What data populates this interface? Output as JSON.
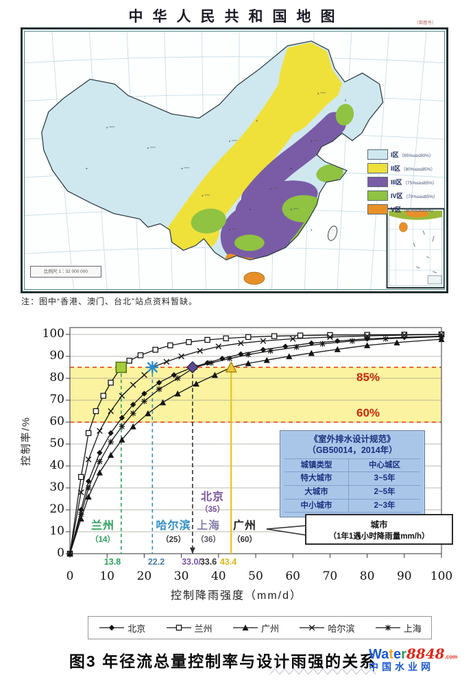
{
  "map": {
    "title": "中华人民共和国地图",
    "corner_note": "（审图号）",
    "scale_note": "比例尺 1∶32 000 000",
    "note": "注：图中“香港、澳门、台北”站点资料暂缺。",
    "legend": [
      {
        "label": "I区",
        "range": "（85%≤α≤90%）",
        "color": "#cfe8f0"
      },
      {
        "label": "II区",
        "range": "（80%≤α≤85%）",
        "color": "#efe13a"
      },
      {
        "label": "III区",
        "range": "（75%≤α≤85%）",
        "color": "#7a5ca6"
      },
      {
        "label": "IV区",
        "range": "（70%≤α≤85%）",
        "color": "#8fc341"
      },
      {
        "label": "V区",
        "range": "（60%≤α≤85%）",
        "color": "#e89028"
      }
    ]
  },
  "chart_data": {
    "type": "line",
    "xlabel": "控制降雨强度（mm/d）",
    "ylabel": "控制率/%",
    "xlim": [
      0,
      100
    ],
    "ylim": [
      0,
      100
    ],
    "x_ticks": [
      0,
      10,
      20,
      30,
      40,
      50,
      60,
      70,
      80,
      90,
      100
    ],
    "y_ticks": [
      0,
      10,
      20,
      30,
      40,
      50,
      60,
      70,
      80,
      90,
      100
    ],
    "grid": "horizontal",
    "band": {
      "from": 60,
      "to": 85,
      "color": "#fbf3a0",
      "labels": [
        "85%",
        "60%"
      ]
    },
    "series": [
      {
        "name": "北京",
        "marker": "diamond",
        "points": [
          [
            0,
            0
          ],
          [
            3,
            20
          ],
          [
            5,
            33
          ],
          [
            8,
            46
          ],
          [
            11,
            55
          ],
          [
            14,
            62
          ],
          [
            17,
            68
          ],
          [
            20,
            73
          ],
          [
            24,
            78
          ],
          [
            28,
            81.5
          ],
          [
            33,
            85
          ],
          [
            37,
            87
          ],
          [
            41,
            89
          ],
          [
            46,
            91
          ],
          [
            52,
            93
          ],
          [
            58,
            94.5
          ],
          [
            65,
            96
          ],
          [
            72,
            97
          ],
          [
            80,
            98
          ],
          [
            90,
            98.7
          ],
          [
            100,
            99.2
          ]
        ]
      },
      {
        "name": "兰州",
        "marker": "square-open",
        "points": [
          [
            0,
            0
          ],
          [
            3,
            35
          ],
          [
            5,
            55
          ],
          [
            7,
            65
          ],
          [
            9,
            72
          ],
          [
            11,
            78
          ],
          [
            13.8,
            85
          ],
          [
            16,
            88
          ],
          [
            19,
            90.5
          ],
          [
            23,
            93
          ],
          [
            27,
            95
          ],
          [
            32,
            96.5
          ],
          [
            37,
            97.5
          ],
          [
            42,
            98.2
          ],
          [
            48,
            98.8
          ],
          [
            55,
            99.2
          ],
          [
            62,
            99.5
          ],
          [
            70,
            99.7
          ],
          [
            80,
            99.8
          ],
          [
            90,
            99.9
          ],
          [
            100,
            100
          ]
        ]
      },
      {
        "name": "广州",
        "marker": "triangle",
        "points": [
          [
            0,
            0
          ],
          [
            3,
            16
          ],
          [
            5,
            26
          ],
          [
            8,
            37
          ],
          [
            11,
            45
          ],
          [
            14,
            52
          ],
          [
            17,
            58
          ],
          [
            21,
            64
          ],
          [
            25,
            69
          ],
          [
            29,
            73
          ],
          [
            34,
            77.5
          ],
          [
            39,
            81.5
          ],
          [
            43.4,
            85
          ],
          [
            48,
            86.8
          ],
          [
            53,
            88.3
          ],
          [
            59,
            90
          ],
          [
            65,
            91.5
          ],
          [
            72,
            93.2
          ],
          [
            80,
            95
          ],
          [
            88,
            96.3
          ],
          [
            100,
            97.8
          ]
        ]
      },
      {
        "name": "哈尔滨",
        "marker": "x",
        "points": [
          [
            0,
            0
          ],
          [
            3,
            28
          ],
          [
            5,
            43
          ],
          [
            8,
            56
          ],
          [
            11,
            65
          ],
          [
            14,
            72
          ],
          [
            17,
            77
          ],
          [
            20,
            81.5
          ],
          [
            22.2,
            85
          ],
          [
            26,
            87.5
          ],
          [
            30,
            90
          ],
          [
            35,
            92.5
          ],
          [
            40,
            94.5
          ],
          [
            46,
            96
          ],
          [
            52,
            97
          ],
          [
            60,
            98
          ],
          [
            70,
            98.8
          ],
          [
            80,
            99.3
          ],
          [
            90,
            99.7
          ],
          [
            100,
            100
          ]
        ]
      },
      {
        "name": "上海",
        "marker": "asterisk",
        "points": [
          [
            0,
            0
          ],
          [
            3,
            18
          ],
          [
            5,
            30
          ],
          [
            8,
            42
          ],
          [
            11,
            51
          ],
          [
            14,
            58
          ],
          [
            17,
            64
          ],
          [
            20,
            69.5
          ],
          [
            24,
            75
          ],
          [
            29,
            80
          ],
          [
            33.6,
            85
          ],
          [
            38,
            87
          ],
          [
            43,
            89
          ],
          [
            48,
            90.8
          ],
          [
            54,
            92.5
          ],
          [
            61,
            94.2
          ],
          [
            68,
            95.7
          ],
          [
            76,
            97
          ],
          [
            85,
            98
          ],
          [
            100,
            99
          ]
        ]
      }
    ],
    "annotations": [
      {
        "city": "兰州",
        "hourly": "（14）",
        "x": 13.8,
        "y": 85,
        "xtick": "13.8",
        "color": "#2ba05c",
        "value_color": "#2ba05c",
        "tick_color": "#2ba05c"
      },
      {
        "city": "哈尔滨",
        "hourly": "（25）",
        "x": 22.2,
        "y": 85,
        "xtick": "22.2",
        "color": "#2f8fc4",
        "value_color": "#333333",
        "tick_color": "#4a7fa8"
      },
      {
        "city": "北京",
        "hourly": "（35）",
        "x": 33.0,
        "y": 85,
        "xtick": "33.0/",
        "color": "#7a55a0",
        "value_color": "#7a55a0",
        "tick_color": "#7a55a0"
      },
      {
        "city": "上海",
        "hourly": "（36）",
        "x": 33.6,
        "y": 85,
        "xtick": "33.6",
        "color": "#8880a8",
        "value_color": "#555566",
        "tick_color": "#333333"
      },
      {
        "city": "广州",
        "hourly": "（60）",
        "x": 43.4,
        "y": 85,
        "xtick": "43.4",
        "color": "#222222",
        "value_color": "#333333",
        "tick_color": "#d8b818"
      }
    ],
    "table": {
      "title1": "《室外排水设计规范》",
      "title2": "（GB50014，2014年）",
      "rows": [
        [
          "城镇类型",
          "中心城区"
        ],
        [
          "特大城市",
          "3~5年"
        ],
        [
          "大城市",
          "2~5年"
        ],
        [
          "中小城市",
          "2~3年"
        ]
      ]
    },
    "callout": {
      "line1": "城市",
      "line2": "（1年1遇小时降雨量mm/h）"
    }
  },
  "caption": "图3  年径流总量控制率与设计雨强的关系",
  "watermark": {
    "letters": [
      {
        "ch": "W",
        "color": "#1b59d2"
      },
      {
        "ch": "a",
        "color": "#1b59d2"
      },
      {
        "ch": "t",
        "color": "#f0a41a"
      },
      {
        "ch": "e",
        "color": "#1b59d2"
      },
      {
        "ch": "r",
        "color": "#2fa14b"
      }
    ],
    "suffix": "8848",
    "suffix_color": "#e02818",
    "tld": ".com",
    "line2": "中国水业网",
    "line2_color": "#1b59d2"
  }
}
